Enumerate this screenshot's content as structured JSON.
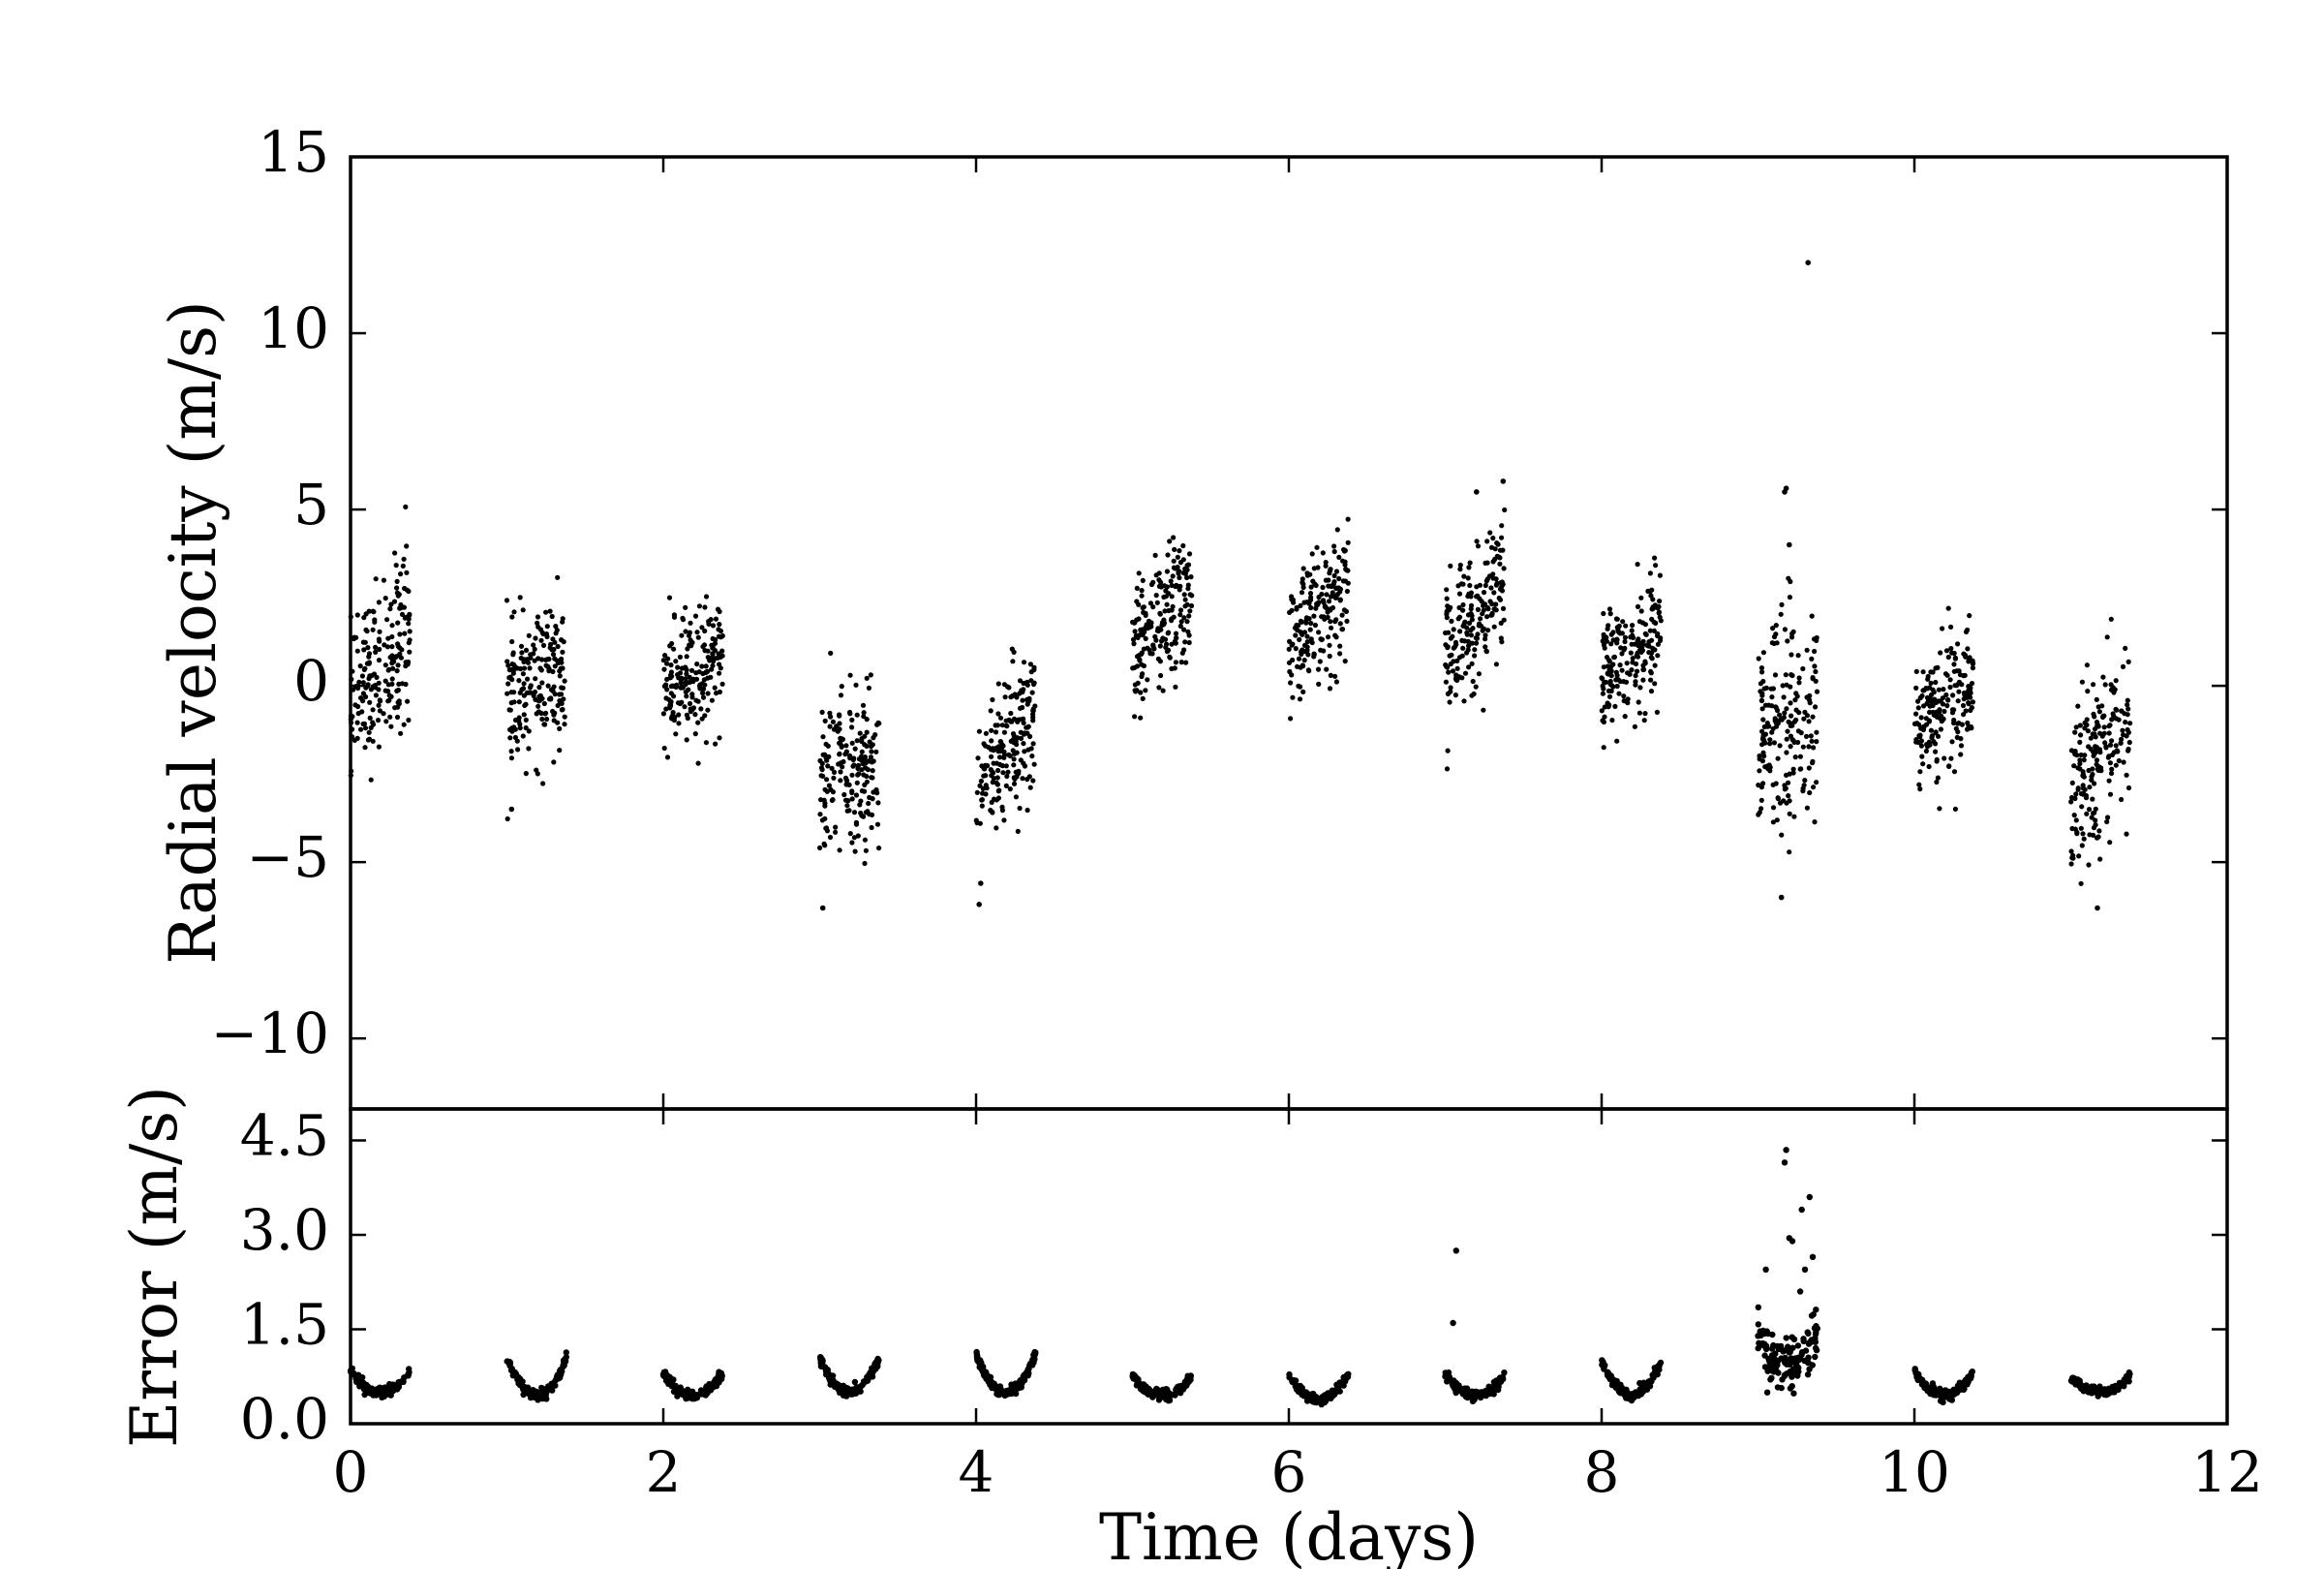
{
  "chart_data": [
    {
      "type": "scatter",
      "panel": "top",
      "title": "",
      "xlabel": "",
      "ylabel": "Radial velocity (m/s)",
      "xlim": [
        0,
        12
      ],
      "ylim": [
        -12,
        15
      ],
      "xticks": [
        0,
        2,
        4,
        6,
        8,
        10,
        12
      ],
      "yticks": [
        -10,
        -5,
        0,
        5,
        10,
        15
      ],
      "ytick_labels": [
        "−10",
        "−5",
        "0",
        "5",
        "10",
        "15"
      ],
      "grid": false,
      "marker_color": "#000000",
      "nights": [
        {
          "start": 0.0,
          "end": 0.38,
          "v0": -0.6,
          "v1": 1.8,
          "spread": 1.2
        },
        {
          "start": 1.0,
          "end": 1.38,
          "v0": -0.3,
          "v1": 0.4,
          "spread": 1.0
        },
        {
          "start": 2.0,
          "end": 2.38,
          "v0": -0.4,
          "v1": 0.9,
          "spread": 0.9
        },
        {
          "start": 3.0,
          "end": 3.38,
          "v0": -2.6,
          "v1": -2.3,
          "spread": 1.1
        },
        {
          "start": 4.0,
          "end": 4.38,
          "v0": -2.9,
          "v1": -0.6,
          "spread": 1.0
        },
        {
          "start": 5.0,
          "end": 5.38,
          "v0": 0.9,
          "v1": 2.4,
          "spread": 1.0
        },
        {
          "start": 6.0,
          "end": 6.38,
          "v0": 1.1,
          "v1": 2.8,
          "spread": 0.9
        },
        {
          "start": 7.0,
          "end": 7.38,
          "v0": 0.9,
          "v1": 3.0,
          "spread": 1.0
        },
        {
          "start": 8.0,
          "end": 8.38,
          "v0": 0.4,
          "v1": 1.4,
          "spread": 0.9
        },
        {
          "start": 9.0,
          "end": 9.38,
          "v0": -1.6,
          "v1": -0.8,
          "spread": 1.7
        },
        {
          "start": 10.0,
          "end": 10.38,
          "v0": -1.2,
          "v1": -0.2,
          "spread": 0.9
        },
        {
          "start": 11.0,
          "end": 11.38,
          "v0": -2.8,
          "v1": -0.9,
          "spread": 1.2
        }
      ],
      "outliers": [
        {
          "x": 9.32,
          "y": 12.0
        },
        {
          "x": 9.18,
          "y": 5.6
        },
        {
          "x": 9.17,
          "y": 5.5
        },
        {
          "x": 9.2,
          "y": 4.0
        },
        {
          "x": 7.37,
          "y": 5.8
        },
        {
          "x": 7.2,
          "y": 5.5
        },
        {
          "x": 3.02,
          "y": -6.3
        },
        {
          "x": 4.02,
          "y": -6.2
        },
        {
          "x": 4.03,
          "y": -5.6
        },
        {
          "x": 11.17,
          "y": -6.3
        },
        {
          "x": 9.15,
          "y": -6.0
        },
        {
          "x": 1.03,
          "y": -3.5
        }
      ]
    },
    {
      "type": "scatter",
      "panel": "bottom",
      "title": "",
      "xlabel": "Time (days)",
      "ylabel": "Error (m/s)",
      "xlim": [
        0,
        12
      ],
      "ylim": [
        0,
        5.0
      ],
      "xticks": [
        0,
        2,
        4,
        6,
        8,
        10,
        12
      ],
      "yticks": [
        0.0,
        1.5,
        3.0,
        4.5
      ],
      "ytick_labels": [
        "0.0",
        "1.5",
        "3.0",
        "4.5"
      ],
      "grid": false,
      "marker_color": "#000000",
      "nights": [
        {
          "start": 0.0,
          "end": 0.38,
          "base": 0.5,
          "edge": 0.35
        },
        {
          "start": 1.0,
          "end": 1.38,
          "base": 0.45,
          "edge": 0.6
        },
        {
          "start": 2.0,
          "end": 2.38,
          "base": 0.45,
          "edge": 0.35
        },
        {
          "start": 3.0,
          "end": 3.38,
          "base": 0.5,
          "edge": 0.55
        },
        {
          "start": 4.0,
          "end": 4.38,
          "base": 0.5,
          "edge": 0.6
        },
        {
          "start": 5.0,
          "end": 5.38,
          "base": 0.45,
          "edge": 0.3
        },
        {
          "start": 6.0,
          "end": 6.38,
          "base": 0.38,
          "edge": 0.4
        },
        {
          "start": 7.0,
          "end": 7.38,
          "base": 0.45,
          "edge": 0.35
        },
        {
          "start": 8.0,
          "end": 8.38,
          "base": 0.45,
          "edge": 0.55
        },
        {
          "start": 9.0,
          "end": 9.38,
          "base": 0.9,
          "edge": 0.6
        },
        {
          "start": 10.0,
          "end": 10.38,
          "base": 0.45,
          "edge": 0.4
        },
        {
          "start": 11.0,
          "end": 11.38,
          "base": 0.5,
          "edge": 0.25
        }
      ],
      "outliers": [
        {
          "x": 9.18,
          "y": 4.35
        },
        {
          "x": 9.17,
          "y": 4.15
        },
        {
          "x": 9.33,
          "y": 3.6
        },
        {
          "x": 9.28,
          "y": 3.4
        },
        {
          "x": 9.2,
          "y": 2.95
        },
        {
          "x": 9.22,
          "y": 2.9
        },
        {
          "x": 9.35,
          "y": 2.65
        },
        {
          "x": 9.3,
          "y": 2.45
        },
        {
          "x": 9.05,
          "y": 2.45
        },
        {
          "x": 9.27,
          "y": 2.1
        },
        {
          "x": 7.07,
          "y": 2.75
        },
        {
          "x": 7.05,
          "y": 1.6
        }
      ]
    }
  ]
}
